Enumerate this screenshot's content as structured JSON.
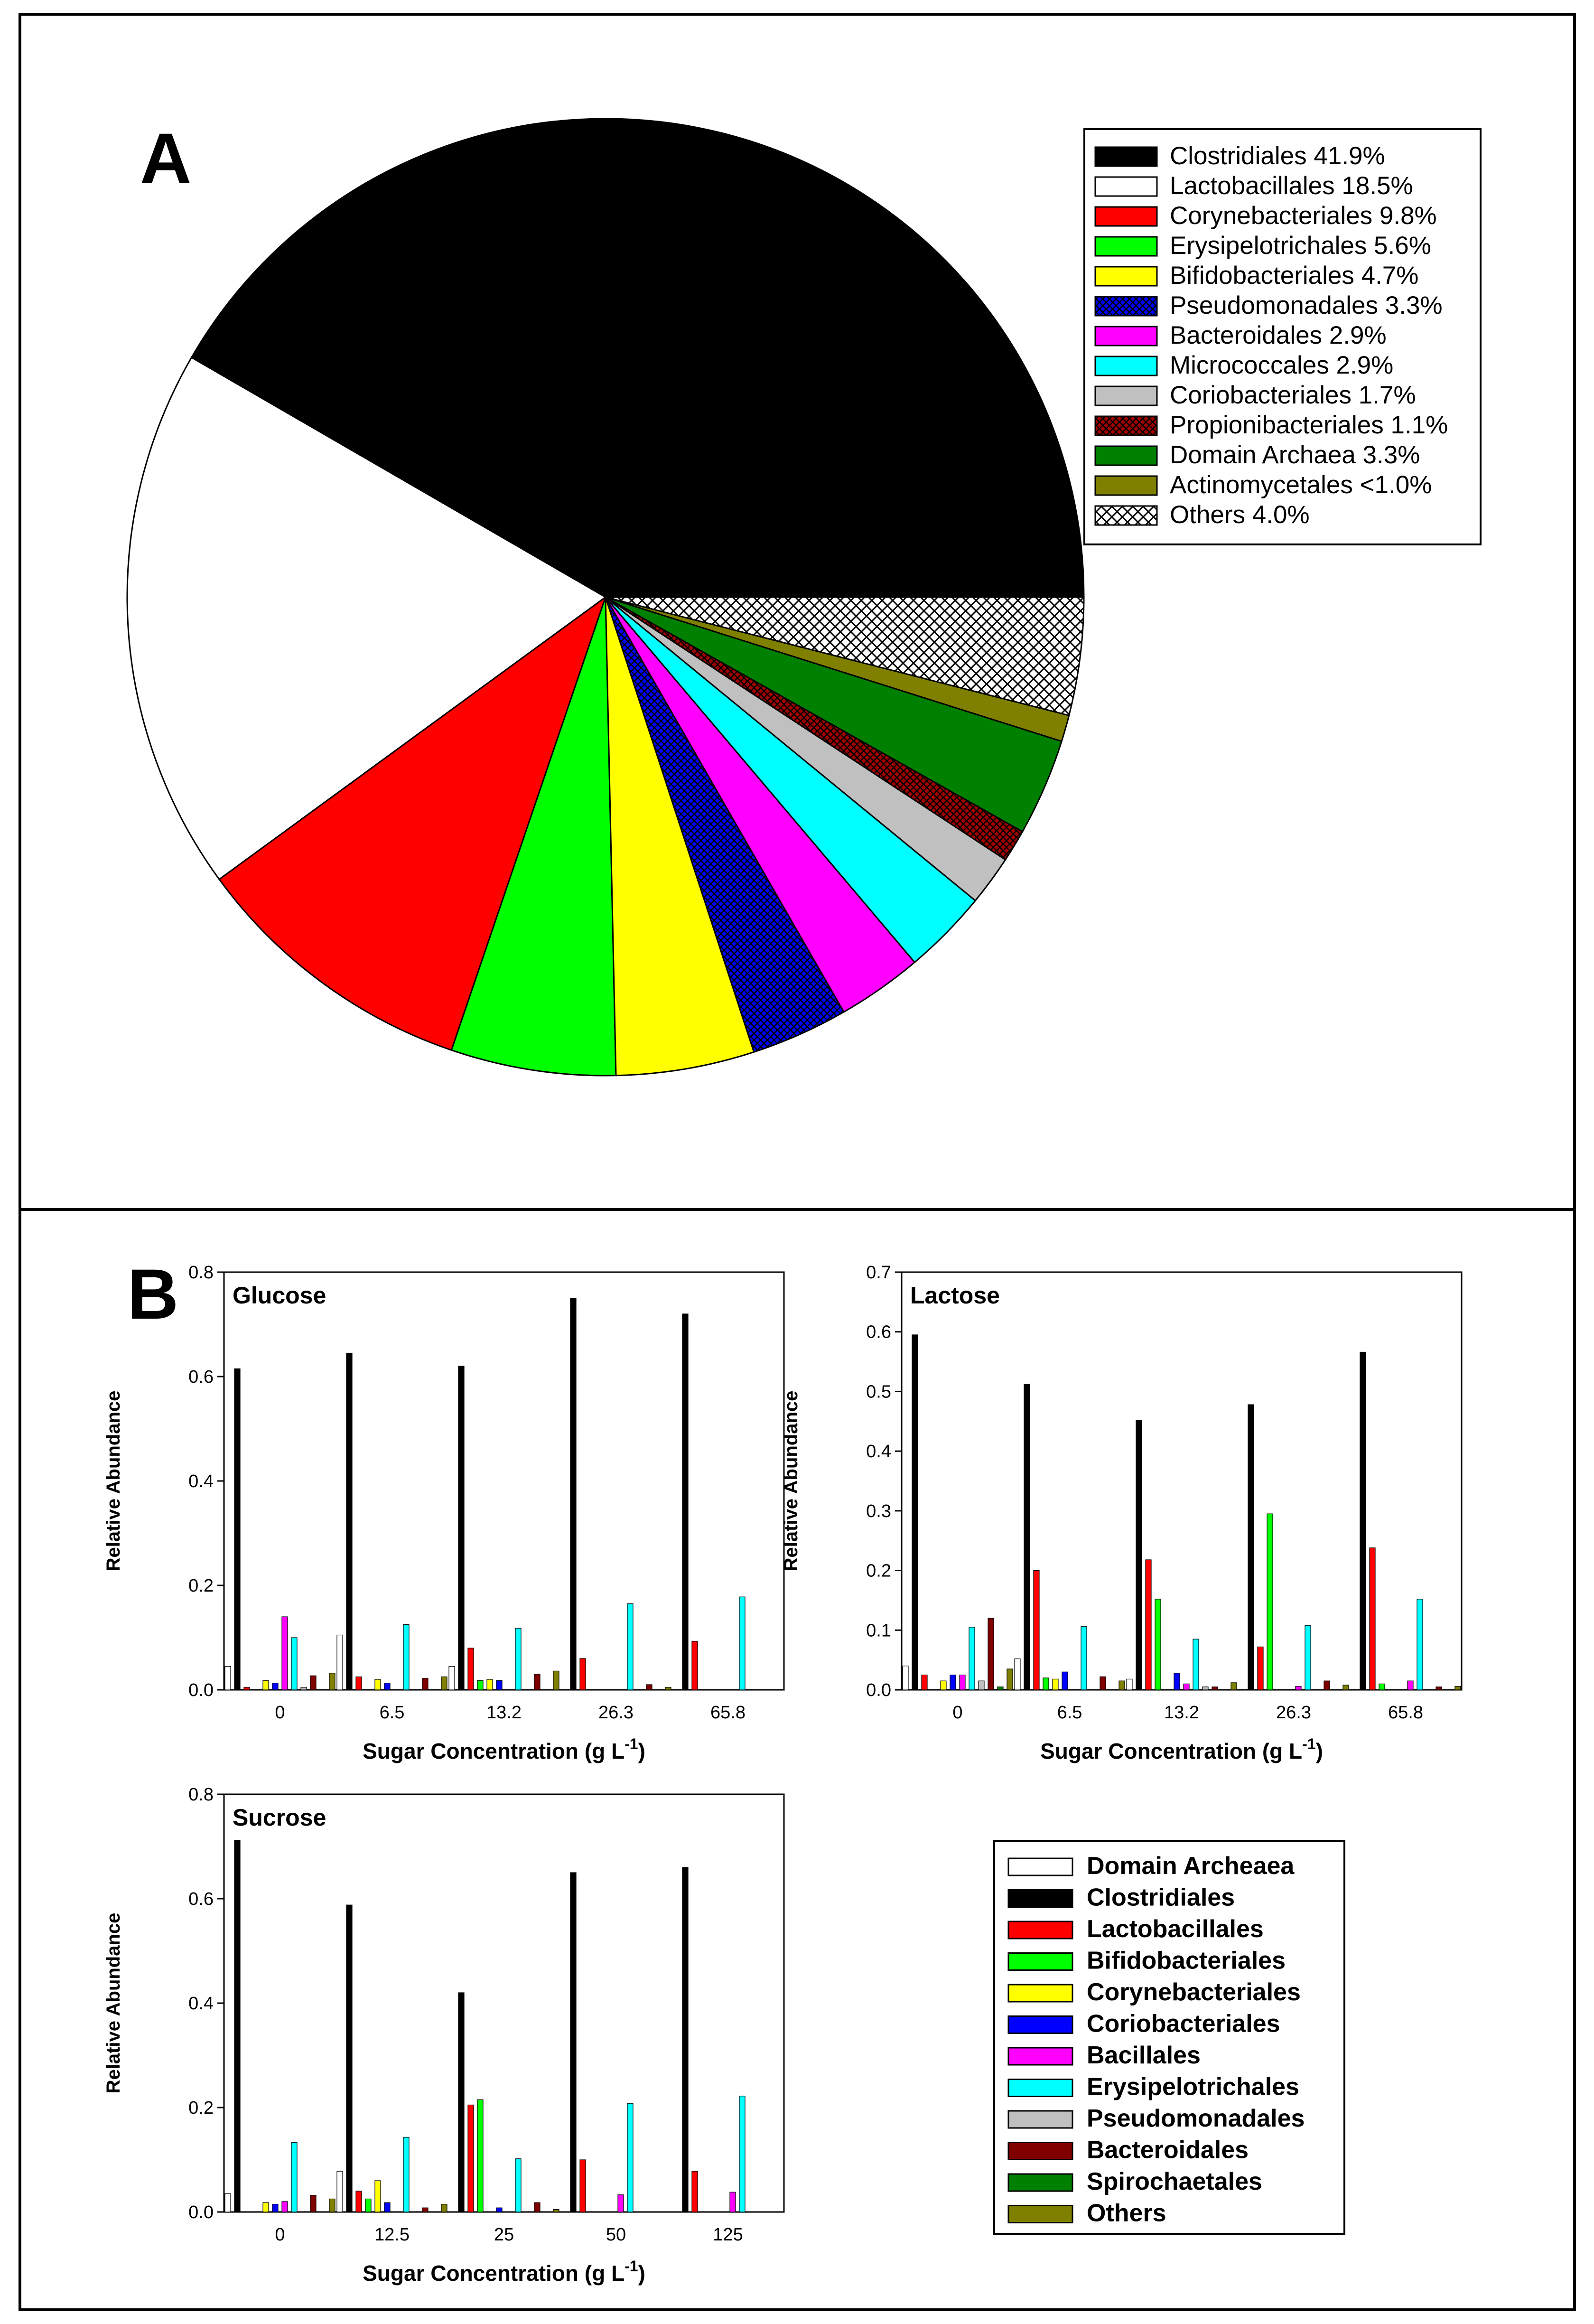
{
  "chart_data": [
    {
      "id": "A",
      "type": "pie",
      "panel_label": "A",
      "slices": [
        {
          "label": "Clostridiales 41.9%",
          "name": "Clostridiales",
          "value": 41.9,
          "color": "#000000",
          "pattern": "solid"
        },
        {
          "label": "Lactobacillales 18.5%",
          "name": "Lactobacillales",
          "value": 18.5,
          "color": "#ffffff",
          "pattern": "solid"
        },
        {
          "label": "Corynebacteriales 9.8%",
          "name": "Corynebacteriales",
          "value": 9.8,
          "color": "#ff0000",
          "pattern": "solid"
        },
        {
          "label": "Erysipelotrichales 5.6%",
          "name": "Erysipelotrichales",
          "value": 5.6,
          "color": "#00ff00",
          "pattern": "solid"
        },
        {
          "label": "Bifidobacteriales 4.7%",
          "name": "Bifidobacteriales",
          "value": 4.7,
          "color": "#ffff00",
          "pattern": "solid"
        },
        {
          "label": "Pseudomonadales 3.3%",
          "name": "Pseudomonadales",
          "value": 3.3,
          "color": "#0000ff",
          "pattern": "crosshatch"
        },
        {
          "label": "Bacteroidales 2.9%",
          "name": "Bacteroidales",
          "value": 2.9,
          "color": "#ff00ff",
          "pattern": "solid"
        },
        {
          "label": "Micrococcales 2.9%",
          "name": "Micrococcales",
          "value": 2.9,
          "color": "#00ffff",
          "pattern": "solid"
        },
        {
          "label": "Coriobacteriales 1.7%",
          "name": "Coriobacteriales",
          "value": 1.7,
          "color": "#c0c0c0",
          "pattern": "solid"
        },
        {
          "label": "Propionibacteriales 1.1%",
          "name": "Propionibacteriales",
          "value": 1.1,
          "color": "#a00000",
          "pattern": "crosshatch"
        },
        {
          "label": "Domain Archaea 3.3%",
          "name": "Domain Archaea",
          "value": 3.3,
          "color": "#008000",
          "pattern": "solid"
        },
        {
          "label": "Actinomycetales <1.0%",
          "name": "Actinomycetales",
          "value": 0.9,
          "color": "#808000",
          "pattern": "solid"
        },
        {
          "label": "Others 4.0%",
          "name": "Others",
          "value": 4.0,
          "color": "#ffffff",
          "pattern": "crosshatch-white"
        }
      ]
    },
    {
      "id": "B",
      "type": "bar",
      "panel_label": "B",
      "legend": [
        {
          "name": "Domain Archeaea",
          "color": "#ffffff"
        },
        {
          "name": "Clostridiales",
          "color": "#000000"
        },
        {
          "name": "Lactobacillales",
          "color": "#ff0000"
        },
        {
          "name": "Bifidobacteriales",
          "color": "#00ff00"
        },
        {
          "name": "Corynebacteriales",
          "color": "#ffff00"
        },
        {
          "name": "Coriobacteriales",
          "color": "#0000ff"
        },
        {
          "name": "Bacillales",
          "color": "#ff00ff"
        },
        {
          "name": "Erysipelotrichales",
          "color": "#00ffff"
        },
        {
          "name": "Pseudomonadales",
          "color": "#c0c0c0"
        },
        {
          "name": "Bacteroidales",
          "color": "#800000"
        },
        {
          "name": "Spirochaetales",
          "color": "#008000"
        },
        {
          "name": "Others",
          "color": "#808000"
        }
      ],
      "panels": [
        {
          "title": "Glucose",
          "xlabel": "Sugar Concentration (g L",
          "xlabel_sup": "-1",
          "xlabel_end": ")",
          "ylabel": "Relative Abundance",
          "ylim": [
            0,
            0.8
          ],
          "yticks": [
            "0.0",
            "0.2",
            "0.4",
            "0.6",
            "0.8"
          ],
          "categories": [
            "0",
            "6.5",
            "13.2",
            "26.3",
            "65.8"
          ],
          "values": [
            [
              0.045,
              0.615,
              0.005,
              0.0,
              0.018,
              0.013,
              0.14,
              0.1,
              0.005,
              0.027,
              0.0,
              0.032
            ],
            [
              0.105,
              0.645,
              0.025,
              0.0,
              0.02,
              0.013,
              0.0,
              0.125,
              0.0,
              0.022,
              0.0,
              0.025
            ],
            [
              0.045,
              0.62,
              0.08,
              0.018,
              0.02,
              0.018,
              0.0,
              0.118,
              0.0,
              0.03,
              0.0,
              0.036
            ],
            [
              0.0,
              0.75,
              0.06,
              0.0,
              0.0,
              0.0,
              0.0,
              0.165,
              0.0,
              0.01,
              0.0,
              0.005
            ],
            [
              0.0,
              0.72,
              0.093,
              0.0,
              0.0,
              0.0,
              0.0,
              0.178,
              0.0,
              0.0,
              0.0,
              0.0
            ]
          ]
        },
        {
          "title": "Lactose",
          "xlabel": "Sugar Concentration (g L",
          "xlabel_sup": "-1",
          "xlabel_end": ")",
          "ylabel": "Relative Abundance",
          "ylim": [
            0,
            0.7
          ],
          "yticks": [
            "0.0",
            "0.1",
            "0.2",
            "0.3",
            "0.4",
            "0.5",
            "0.6",
            "0.7"
          ],
          "categories": [
            "0",
            "6.5",
            "13.2",
            "26.3",
            "65.8"
          ],
          "values": [
            [
              0.04,
              0.595,
              0.025,
              0.0,
              0.015,
              0.025,
              0.025,
              0.105,
              0.015,
              0.12,
              0.005,
              0.035
            ],
            [
              0.052,
              0.512,
              0.2,
              0.02,
              0.018,
              0.03,
              0.0,
              0.106,
              0.0,
              0.022,
              0.0,
              0.015
            ],
            [
              0.018,
              0.452,
              0.218,
              0.152,
              0.0,
              0.028,
              0.01,
              0.085,
              0.005,
              0.005,
              0.0,
              0.012
            ],
            [
              0.0,
              0.478,
              0.072,
              0.295,
              0.0,
              0.0,
              0.006,
              0.108,
              0.0,
              0.015,
              0.0,
              0.008
            ],
            [
              0.0,
              0.566,
              0.238,
              0.01,
              0.0,
              0.0,
              0.015,
              0.152,
              0.0,
              0.005,
              0.0,
              0.006
            ]
          ]
        },
        {
          "title": "Sucrose",
          "xlabel": "Sugar Concentration (g L",
          "xlabel_sup": "-1",
          "xlabel_end": ")",
          "ylabel": "Relative Abundance",
          "ylim": [
            0,
            0.8
          ],
          "yticks": [
            "0.0",
            "0.2",
            "0.4",
            "0.6",
            "0.8"
          ],
          "categories": [
            "0",
            "12.5",
            "25",
            "50",
            "125"
          ],
          "values": [
            [
              0.035,
              0.712,
              0.0,
              0.0,
              0.018,
              0.015,
              0.02,
              0.133,
              0.0,
              0.032,
              0.0,
              0.025
            ],
            [
              0.078,
              0.588,
              0.04,
              0.025,
              0.06,
              0.018,
              0.0,
              0.143,
              0.0,
              0.008,
              0.0,
              0.015
            ],
            [
              0.0,
              0.42,
              0.205,
              0.215,
              0.0,
              0.008,
              0.0,
              0.102,
              0.0,
              0.018,
              0.0,
              0.005
            ],
            [
              0.0,
              0.65,
              0.1,
              0.0,
              0.0,
              0.0,
              0.033,
              0.208,
              0.0,
              0.0,
              0.0,
              0.0
            ],
            [
              0.0,
              0.66,
              0.078,
              0.0,
              0.0,
              0.0,
              0.038,
              0.222,
              0.0,
              0.0,
              0.0,
              0.0
            ]
          ]
        }
      ]
    }
  ]
}
